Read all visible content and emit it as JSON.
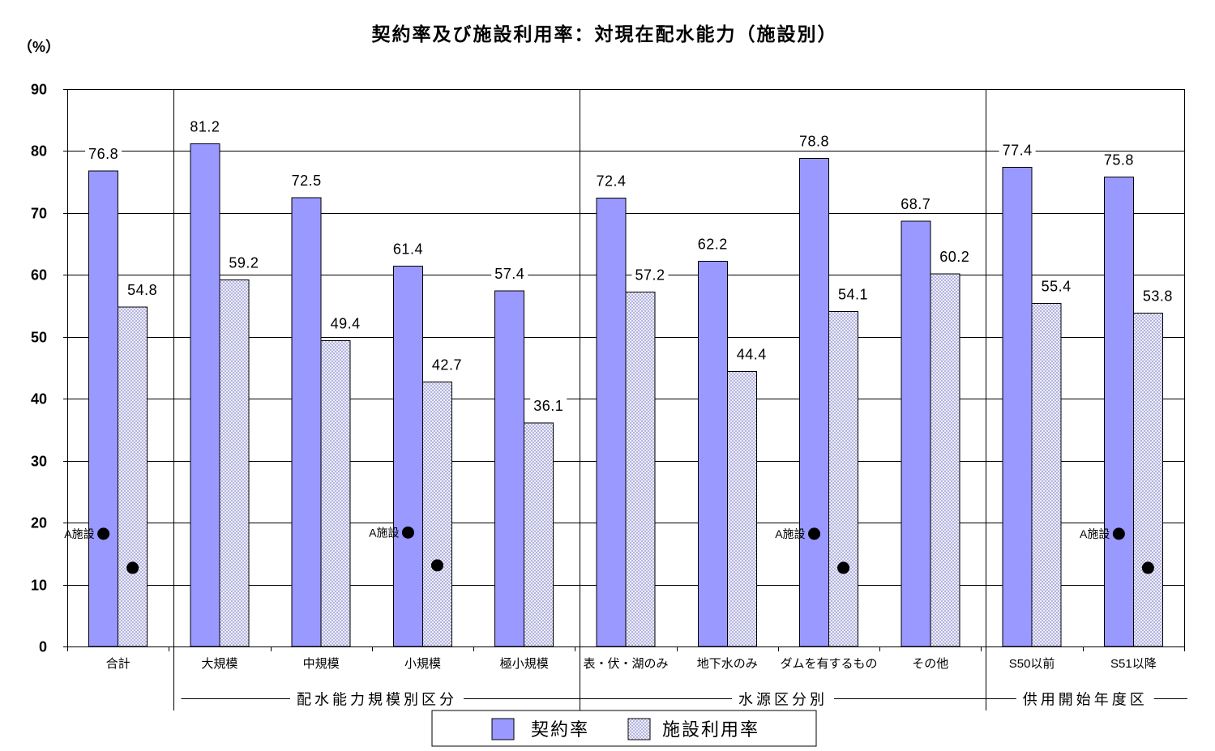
{
  "chart_data": {
    "type": "bar",
    "title": "契約率及び施設利用率：対現在配水能力（施設別）",
    "ylabel": "（%）",
    "ylim": [
      0,
      90
    ],
    "yticks": [
      0,
      10,
      20,
      30,
      40,
      50,
      60,
      70,
      80,
      90
    ],
    "grid": true,
    "categories": [
      "合計",
      "大規模",
      "中規模",
      "小規模",
      "極小規模",
      "表・伏・湖のみ",
      "地下水のみ",
      "ダムを有するもの",
      "その他",
      "S50以前",
      "S51以降"
    ],
    "category_groups": [
      {
        "label": "配水能力規模別区分",
        "first": 1,
        "last": 4
      },
      {
        "label": "水源区分別",
        "first": 5,
        "last": 8
      },
      {
        "label": "供用開始年度区",
        "first": 9,
        "last": 10
      }
    ],
    "series": [
      {
        "name": "契約率",
        "color": "#9999ff",
        "values": [
          76.8,
          81.2,
          72.5,
          61.4,
          57.4,
          72.4,
          62.2,
          78.8,
          68.7,
          77.4,
          75.8
        ]
      },
      {
        "name": "施設利用率",
        "color": "#a8a8dc",
        "values": [
          54.8,
          59.2,
          49.4,
          42.7,
          36.1,
          57.2,
          44.4,
          54.1,
          60.2,
          55.4,
          53.8
        ]
      }
    ],
    "data_labels": true,
    "markers": [
      {
        "label": "A施設",
        "values": [
          18.2,
          12.7
        ]
      },
      null,
      null,
      {
        "label": "A施設",
        "values": [
          18.4,
          13.1
        ]
      },
      null,
      null,
      null,
      {
        "label": "A施設",
        "values": [
          18.2,
          12.7
        ]
      },
      null,
      null,
      {
        "label": "A施設",
        "values": [
          18.2,
          12.7
        ]
      }
    ],
    "marker_color": "#000000",
    "legend_placement": "bottom"
  }
}
